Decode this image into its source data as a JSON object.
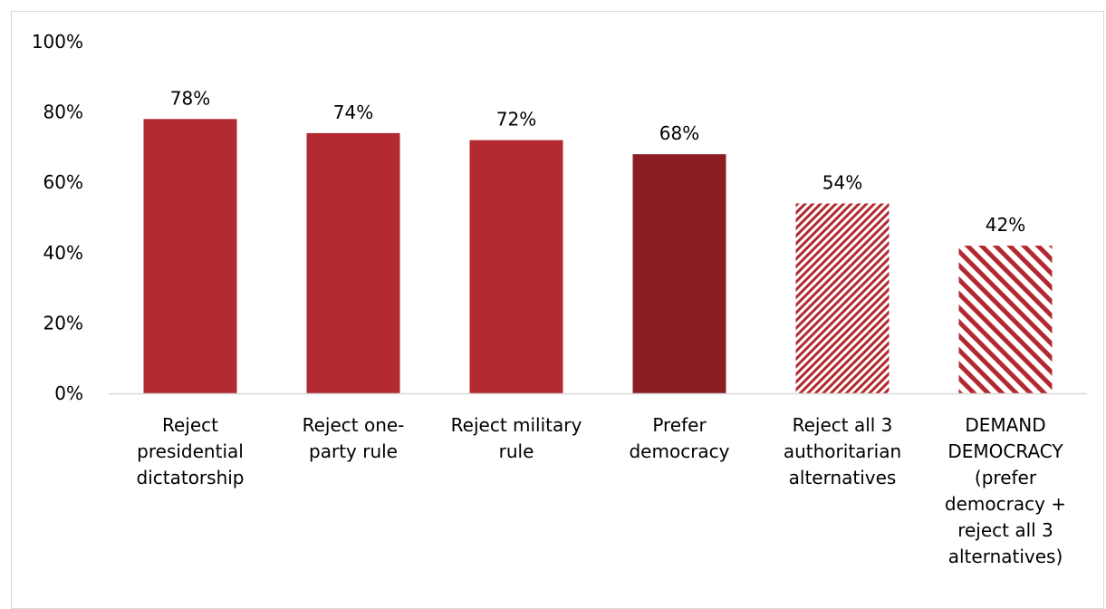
{
  "chart_data": {
    "type": "bar",
    "title": "",
    "xlabel": "",
    "ylabel": "",
    "ylim": [
      0,
      100
    ],
    "yticks": [
      "0%",
      "20%",
      "40%",
      "60%",
      "80%",
      "100%"
    ],
    "grid": false,
    "legend": "none",
    "categories": [
      "Reject presidential dictatorship",
      "Reject one-party rule",
      "Reject military rule",
      "Prefer democracy",
      "Reject all 3 authoritarian alternatives",
      "DEMAND DEMOCRACY (prefer democracy + reject all 3 alternatives)"
    ],
    "category_lines": [
      [
        "Reject",
        "presidential",
        "dictatorship"
      ],
      [
        "Reject one-",
        "party rule"
      ],
      [
        "Reject military",
        "rule"
      ],
      [
        "Prefer",
        "democracy"
      ],
      [
        "Reject all 3",
        "authoritarian",
        "alternatives"
      ],
      [
        "DEMAND",
        "DEMOCRACY",
        "(prefer",
        "democracy +",
        "reject all 3",
        "alternatives)"
      ]
    ],
    "values": [
      78,
      74,
      72,
      68,
      54,
      42
    ],
    "value_labels": [
      "78%",
      "74%",
      "72%",
      "68%",
      "54%",
      "42%"
    ],
    "bar_styles": [
      "solid",
      "solid",
      "solid",
      "solid-dark",
      "hatch-fine",
      "hatch-wide"
    ],
    "colors": {
      "solid": "#b22a30",
      "solid_dark": "#8b1e22",
      "hatch": "#b22a30",
      "axis": "#d9d9d9"
    }
  }
}
